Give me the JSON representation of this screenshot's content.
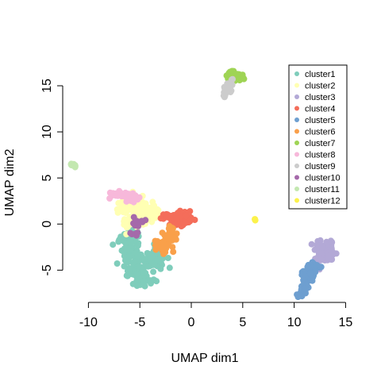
{
  "chart_data": {
    "type": "scatter",
    "xlabel": "UMAP dim1",
    "ylabel": "UMAP dim2",
    "xlim": [
      -12.5,
      15.2
    ],
    "ylim": [
      -8.5,
      17.5
    ],
    "xticks": [
      -10,
      -5,
      0,
      5,
      10,
      15
    ],
    "yticks": [
      -5,
      0,
      5,
      10,
      15
    ],
    "xtick_labels": [
      "-10",
      "-5",
      "0",
      "5",
      "10",
      "15"
    ],
    "ytick_labels": [
      "-5",
      "0",
      "5",
      "10",
      "15"
    ],
    "grid": false,
    "legend_position": "top-right",
    "series": [
      {
        "name": "cluster1",
        "color": "#7fcdbb",
        "center": [
          -4.6,
          -4.5
        ],
        "spread": [
          0.9,
          0.9
        ],
        "n": 260,
        "anchors": [
          [
            -5.9,
            -2.8
          ],
          [
            -4.0,
            -3.9
          ],
          [
            -3.3,
            -3.4
          ],
          [
            -4.5,
            -6.0
          ],
          [
            -5.5,
            -5.2
          ],
          [
            -6.0,
            -1.5
          ]
        ]
      },
      {
        "name": "cluster2",
        "color": "#ffffb3",
        "center": [
          -5.3,
          1.2
        ],
        "spread": [
          0.9,
          0.7
        ],
        "n": 150,
        "anchors": [
          [
            -6.4,
            1.7
          ],
          [
            -4.2,
            1.5
          ],
          [
            -5.8,
            0.2
          ],
          [
            -5.2,
            2.2
          ],
          [
            -4.0,
            0.9
          ]
        ]
      },
      {
        "name": "cluster3",
        "color": "#b3a9d6",
        "center": [
          13.0,
          -3.0
        ],
        "spread": [
          0.45,
          0.55
        ],
        "n": 120,
        "anchors": [
          [
            12.4,
            -2.5
          ],
          [
            13.5,
            -3.4
          ],
          [
            12.6,
            -3.7
          ],
          [
            13.3,
            -2.4
          ]
        ]
      },
      {
        "name": "cluster4",
        "color": "#f46d5a",
        "center": [
          -1.4,
          0.5
        ],
        "spread": [
          0.6,
          0.35
        ],
        "n": 110,
        "anchors": [
          [
            -2.4,
            0.8
          ],
          [
            -0.8,
            1.0
          ],
          [
            -1.2,
            0.0
          ],
          [
            -0.7,
            0.3
          ]
        ]
      },
      {
        "name": "cluster5",
        "color": "#6e9fd0",
        "center": [
          11.5,
          -5.0
        ],
        "spread": [
          0.45,
          0.45
        ],
        "n": 70,
        "anchors": [
          [
            11.0,
            -5.4
          ],
          [
            12.1,
            -4.5
          ],
          [
            11.5,
            -5.8
          ],
          [
            11.0,
            -6.8
          ],
          [
            10.8,
            -7.5
          ]
        ]
      },
      {
        "name": "cluster6",
        "color": "#f9a04a",
        "center": [
          -2.5,
          -1.9
        ],
        "spread": [
          0.5,
          0.6
        ],
        "n": 90,
        "anchors": [
          [
            -1.9,
            -0.8
          ],
          [
            -2.8,
            -2.6
          ],
          [
            -3.2,
            -2.1
          ],
          [
            -2.1,
            -1.3
          ]
        ]
      },
      {
        "name": "cluster7",
        "color": "#9fd455",
        "center": [
          4.3,
          16.0
        ],
        "spread": [
          0.4,
          0.25
        ],
        "n": 60,
        "anchors": [
          [
            3.8,
            16.4
          ],
          [
            4.8,
            15.9
          ],
          [
            4.0,
            15.7
          ]
        ]
      },
      {
        "name": "cluster8",
        "color": "#f7b8da",
        "center": [
          -6.6,
          3.1
        ],
        "spread": [
          0.6,
          0.25
        ],
        "n": 70,
        "anchors": [
          [
            -7.2,
            3.2
          ],
          [
            -6.0,
            3.1
          ],
          [
            -5.6,
            2.6
          ]
        ]
      },
      {
        "name": "cluster9",
        "color": "#cccccc",
        "center": [
          3.6,
          14.7
        ],
        "spread": [
          0.2,
          0.35
        ],
        "n": 30,
        "anchors": [
          [
            3.3,
            14.2
          ],
          [
            3.7,
            15.0
          ],
          [
            3.9,
            15.4
          ]
        ]
      },
      {
        "name": "cluster10",
        "color": "#a569aa",
        "center": [
          -5.3,
          0.2
        ],
        "spread": [
          0.4,
          0.25
        ],
        "n": 22,
        "anchors": [
          [
            -5.5,
            0.1
          ],
          [
            -4.8,
            0.2
          ],
          [
            -5.8,
            -1.1
          ]
        ]
      },
      {
        "name": "cluster11",
        "color": "#c3e8b0",
        "center": [
          -11.5,
          6.4
        ],
        "spread": [
          0.12,
          0.1
        ],
        "n": 14,
        "anchors": [
          [
            -11.7,
            6.5
          ],
          [
            -11.3,
            6.3
          ]
        ]
      },
      {
        "name": "cluster12",
        "color": "#fcf24b",
        "center": [
          6.2,
          0.5
        ],
        "spread": [
          0.05,
          0.05
        ],
        "n": 4,
        "anchors": [
          [
            6.2,
            0.5
          ]
        ]
      }
    ]
  }
}
